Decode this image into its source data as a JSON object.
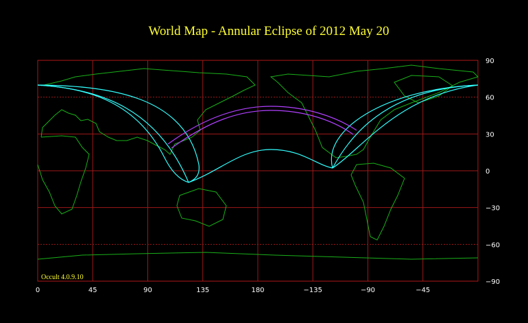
{
  "title": "World Map  -  Annular  Eclipse  of  2012 May 20",
  "longitude_labels": [
    "0",
    "45",
    "90",
    "135",
    "180",
    "−135",
    "−90",
    "−45"
  ],
  "latitude_labels": [
    "90",
    "60",
    "30",
    "0",
    "−30",
    "−60",
    "−90"
  ],
  "software": "Occult 4.0.9.10"
}
